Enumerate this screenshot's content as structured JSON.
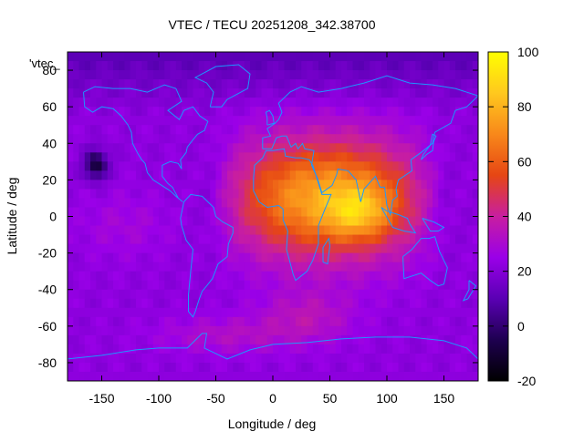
{
  "chart_data": {
    "type": "heatmap",
    "title": "VTEC / TECU 20251208_342.38700",
    "xlabel": "Longitude / deg",
    "ylabel": "Latitude / deg",
    "key_label": "'vtec_",
    "xlim": [
      -180,
      180
    ],
    "ylim": [
      -90,
      90
    ],
    "xticks": [
      -150,
      -100,
      -50,
      0,
      50,
      100,
      150
    ],
    "yticks": [
      -80,
      -60,
      -40,
      -20,
      0,
      20,
      40,
      60,
      80
    ],
    "colorbar": {
      "min": -20,
      "max": 100,
      "ticks": [
        -20,
        0,
        20,
        40,
        60,
        80,
        100
      ]
    },
    "palette": [
      "#000000",
      "#1e0050",
      "#5a00b4",
      "#9a00e8",
      "#c81ea0",
      "#e64614",
      "#f8881a",
      "#ffc81e",
      "#ffff00"
    ],
    "coastline_color": "#1e96ff",
    "features": {
      "background_value": 22,
      "polar_north_value": 14,
      "anomaly_hole": {
        "lon": -155,
        "lat": 28,
        "value": -8
      },
      "equatorial_peak": {
        "lon": 75,
        "lat": 2,
        "value": 92
      }
    }
  }
}
